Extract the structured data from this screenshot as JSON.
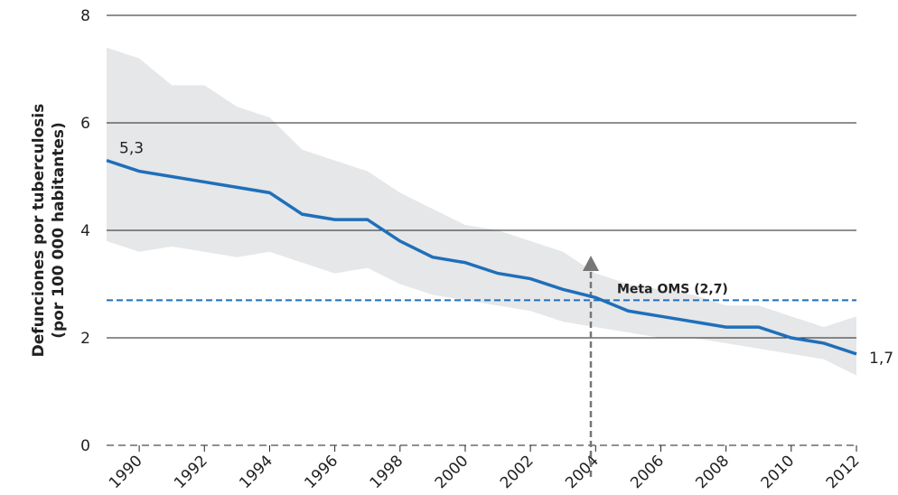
{
  "chart_data": {
    "type": "line",
    "ylabel": [
      "Defunciones por tuberculosis",
      "(por 100 000 habitantes)"
    ],
    "x": [
      1989,
      1990,
      1991,
      1992,
      1993,
      1994,
      1995,
      1996,
      1997,
      1998,
      1999,
      2000,
      2001,
      2002,
      2003,
      2004,
      2005,
      2006,
      2007,
      2008,
      2009,
      2010,
      2011,
      2012
    ],
    "series": [
      {
        "color": "#1f6fba",
        "values": [
          5.3,
          5.1,
          5.0,
          4.9,
          4.8,
          4.7,
          4.3,
          4.2,
          4.2,
          3.8,
          3.5,
          3.4,
          3.2,
          3.1,
          2.9,
          2.75,
          2.5,
          2.4,
          2.3,
          2.2,
          2.2,
          2.0,
          1.9,
          1.7
        ],
        "value_labels": [
          "5,3",
          null,
          null,
          null,
          null,
          null,
          null,
          null,
          null,
          null,
          null,
          null,
          null,
          null,
          null,
          null,
          null,
          null,
          null,
          null,
          null,
          null,
          null,
          "1,7"
        ],
        "upper": [
          7.4,
          7.2,
          6.7,
          6.7,
          6.3,
          6.1,
          5.5,
          5.3,
          5.1,
          4.7,
          4.4,
          4.1,
          4.0,
          3.8,
          3.6,
          3.2,
          3.0,
          2.9,
          2.8,
          2.6,
          2.6,
          2.4,
          2.2,
          2.4
        ],
        "lower": [
          3.8,
          3.6,
          3.7,
          3.6,
          3.5,
          3.6,
          3.4,
          3.2,
          3.3,
          3.0,
          2.8,
          2.7,
          2.6,
          2.5,
          2.3,
          2.2,
          2.1,
          2.0,
          2.0,
          1.9,
          1.8,
          1.7,
          1.6,
          1.3
        ],
        "band_color": "#e6e7e8"
      }
    ],
    "target": {
      "value": 2.7,
      "label": "Meta OMS (2,7)",
      "color": "#1f6fba"
    },
    "xlim": [
      1989,
      2012
    ],
    "xticks": [
      1990,
      1992,
      1994,
      1996,
      1998,
      2000,
      2002,
      2004,
      2006,
      2008,
      2010,
      2012
    ],
    "ylim": [
      0,
      8
    ],
    "yticks": [
      0,
      2,
      4,
      6,
      8
    ],
    "grid": true
  }
}
